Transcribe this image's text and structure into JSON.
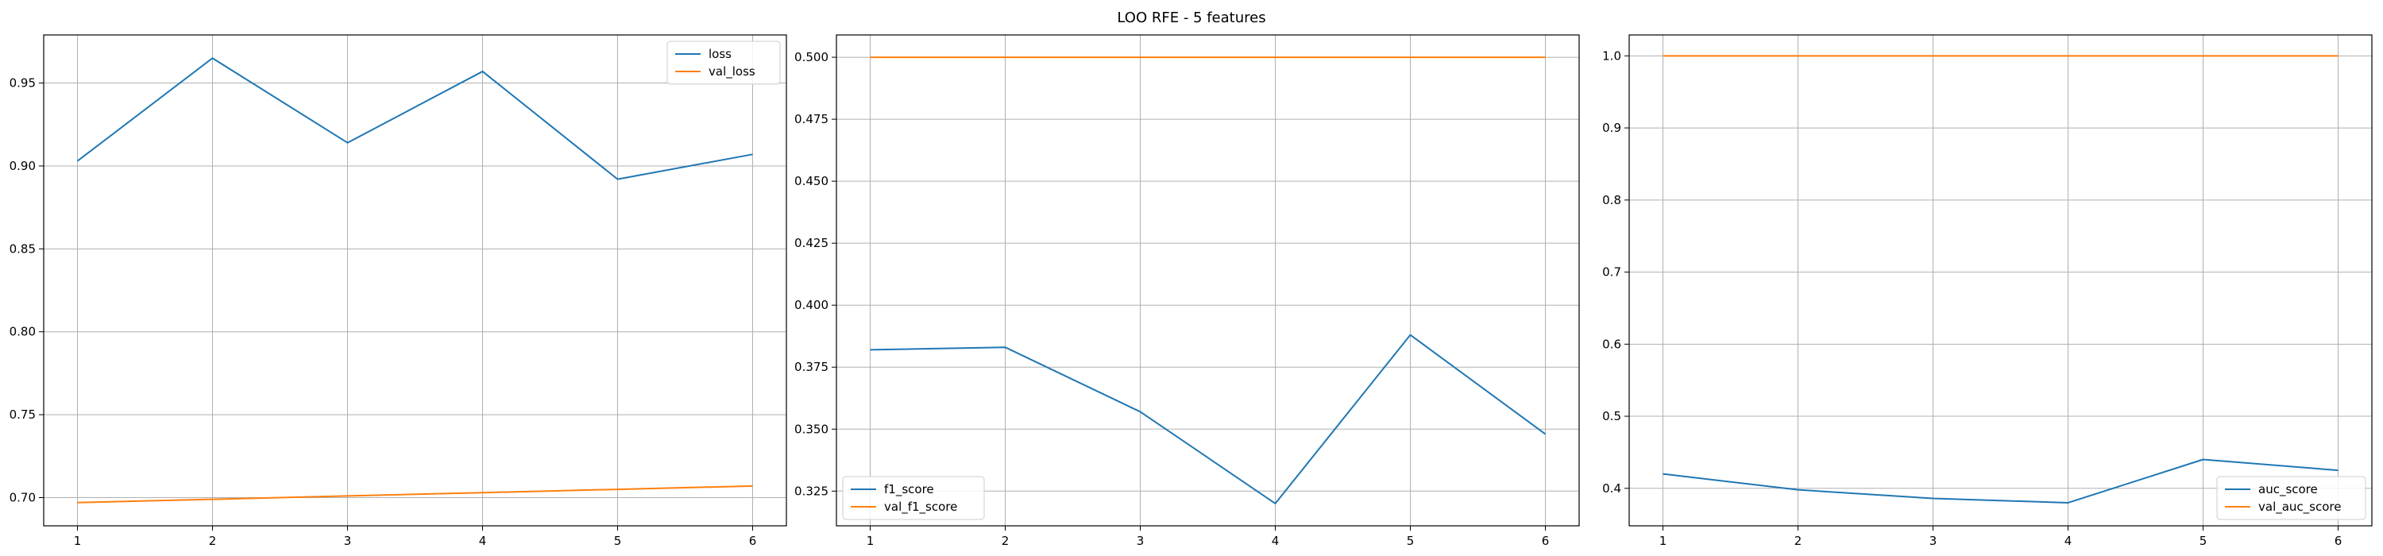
{
  "figure": {
    "title": "LOO RFE - 5 features"
  },
  "colors": {
    "series1": "#1f77b4",
    "series2": "#ff7f0e",
    "grid": "#b0b0b0",
    "axis": "#000000"
  },
  "chart_data": [
    {
      "type": "line",
      "x": [
        1,
        2,
        3,
        4,
        5,
        6
      ],
      "xticks": [
        1,
        2,
        3,
        4,
        5,
        6
      ],
      "xlim": [
        0.75,
        6.25
      ],
      "ylim": [
        0.683,
        0.979
      ],
      "yticks": [
        0.7,
        0.75,
        0.8,
        0.85,
        0.9,
        0.95
      ],
      "ytick_labels": [
        "0.70",
        "0.75",
        "0.80",
        "0.85",
        "0.90",
        "0.95"
      ],
      "grid": true,
      "legend": "top-right",
      "series": [
        {
          "name": "loss",
          "color": "#1f77b4",
          "values": [
            0.903,
            0.965,
            0.914,
            0.957,
            0.892,
            0.907
          ]
        },
        {
          "name": "val_loss",
          "color": "#ff7f0e",
          "values": [
            0.697,
            0.699,
            0.701,
            0.703,
            0.705,
            0.707
          ]
        }
      ]
    },
    {
      "type": "line",
      "x": [
        1,
        2,
        3,
        4,
        5,
        6
      ],
      "xticks": [
        1,
        2,
        3,
        4,
        5,
        6
      ],
      "xlim": [
        0.75,
        6.25
      ],
      "ylim": [
        0.311,
        0.509
      ],
      "yticks": [
        0.325,
        0.35,
        0.375,
        0.4,
        0.425,
        0.45,
        0.475,
        0.5
      ],
      "ytick_labels": [
        "0.325",
        "0.350",
        "0.375",
        "0.400",
        "0.425",
        "0.450",
        "0.475",
        "0.500"
      ],
      "grid": true,
      "legend": "bottom-left",
      "series": [
        {
          "name": "f1_score",
          "color": "#1f77b4",
          "values": [
            0.382,
            0.383,
            0.357,
            0.32,
            0.388,
            0.348
          ]
        },
        {
          "name": "val_f1_score",
          "color": "#ff7f0e",
          "values": [
            0.5,
            0.5,
            0.5,
            0.5,
            0.5,
            0.5
          ]
        }
      ]
    },
    {
      "type": "line",
      "x": [
        1,
        2,
        3,
        4,
        5,
        6
      ],
      "xticks": [
        1,
        2,
        3,
        4,
        5,
        6
      ],
      "xlim": [
        0.75,
        6.25
      ],
      "ylim": [
        0.348,
        1.029
      ],
      "yticks": [
        0.4,
        0.5,
        0.6,
        0.7,
        0.8,
        0.9,
        1.0
      ],
      "ytick_labels": [
        "0.4",
        "0.5",
        "0.6",
        "0.7",
        "0.8",
        "0.9",
        "1.0"
      ],
      "grid": true,
      "legend": "bottom-right",
      "series": [
        {
          "name": "auc_score",
          "color": "#1f77b4",
          "values": [
            0.42,
            0.398,
            0.386,
            0.38,
            0.44,
            0.425
          ]
        },
        {
          "name": "val_auc_score",
          "color": "#ff7f0e",
          "values": [
            1.0,
            1.0,
            1.0,
            1.0,
            1.0,
            1.0
          ]
        }
      ]
    }
  ]
}
